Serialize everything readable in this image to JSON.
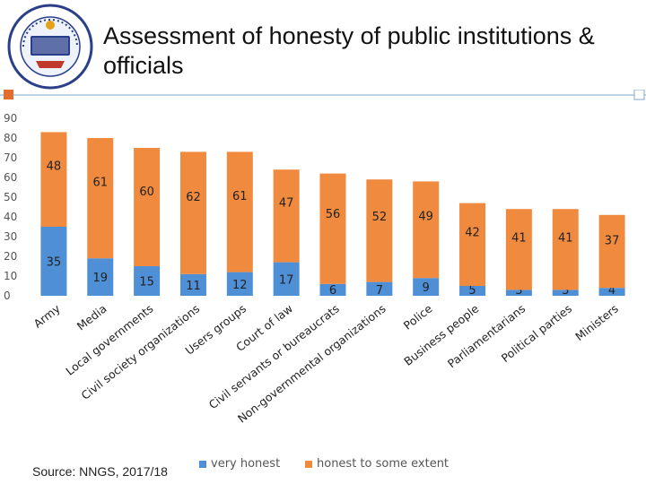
{
  "slide": {
    "title": "Assessment of honesty of public institutions & officials",
    "source": "Source: NNGS, 2017/18",
    "colors": {
      "accent": "#e36c2f",
      "rule": "#7fa6c8"
    }
  },
  "chart_data": {
    "type": "bar",
    "stacked": true,
    "categories": [
      "Army",
      "Media",
      "Local governments",
      "Civil society organizations",
      "Users groups",
      "Court of law",
      "Civil servants or bureaucrats",
      "Non-governmental organizations",
      "Police",
      "Business people",
      "Parliamentarians",
      "Political parties",
      "Ministers"
    ],
    "series": [
      {
        "name": "very honest",
        "color": "#4f8fd6",
        "values": [
          35,
          19,
          15,
          11,
          12,
          17,
          6,
          7,
          9,
          5,
          3,
          3,
          4
        ]
      },
      {
        "name": "honest to some extent",
        "color": "#f08a3e",
        "values": [
          48,
          61,
          60,
          62,
          61,
          47,
          56,
          52,
          49,
          42,
          41,
          41,
          37
        ]
      }
    ],
    "ylim": [
      0,
      90
    ],
    "yticks": [
      0,
      10,
      20,
      30,
      40,
      50,
      60,
      70,
      80,
      90
    ],
    "xlabel": "",
    "ylabel": "",
    "legend": "bottom"
  }
}
